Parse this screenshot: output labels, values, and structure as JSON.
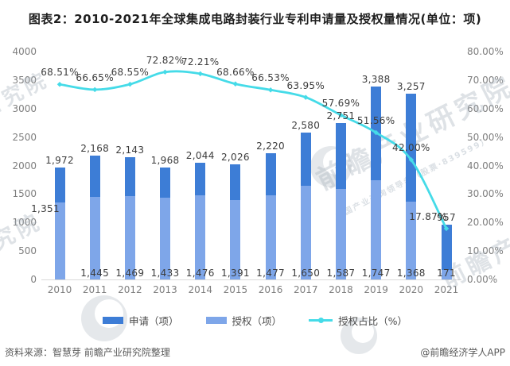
{
  "title": "图表2：2010-2021年全球集成电路封装行业专利申请量及授权量情况(单位：项)",
  "footer": {
    "source_note": "资料来源：智慧芽 前瞻产业研究院整理",
    "credit": "@前瞻经济学人APP"
  },
  "watermark": {
    "main": "前瞻产业研究院",
    "sub": "中国产业咨询领导者（股票·839599）",
    "side": "前瞻产业研究院",
    "left_fragment": "研究院"
  },
  "colors": {
    "application_bar": "#3d7dd6",
    "grant_bar": "#7ea6e9",
    "ratio_line": "#45dbe8",
    "axis_text": "#7e7e7e",
    "label_text": "#3c3c3c",
    "baseline": "#d9d9d9"
  },
  "legend": [
    {
      "label": "申请（项）",
      "type": "bar",
      "color_key": "application_bar"
    },
    {
      "label": "授权（项）",
      "type": "bar",
      "color_key": "grant_bar"
    },
    {
      "label": "授权占比（%）",
      "type": "line",
      "color_key": "ratio_line"
    }
  ],
  "left_axis": {
    "min": 0,
    "max": 4000,
    "ticks": [
      "0",
      "500",
      "1000",
      "1500",
      "2000",
      "2500",
      "3000",
      "3500",
      "4000"
    ]
  },
  "right_axis": {
    "min": 0,
    "max": 80,
    "ticks": [
      "0.00%",
      "10.00%",
      "20.00%",
      "30.00%",
      "40.00%",
      "50.00%",
      "60.00%",
      "70.00%",
      "80.00%"
    ]
  },
  "chart_data": {
    "type": "combo-bar-line-dual-axis",
    "categories": [
      "2010",
      "2011",
      "2012",
      "2013",
      "2014",
      "2015",
      "2016",
      "2017",
      "2018",
      "2019",
      "2020",
      "2021"
    ],
    "series": [
      {
        "name": "申请（项）",
        "type": "bar",
        "axis": "left",
        "values": [
          1972,
          2168,
          2143,
          1968,
          2044,
          2026,
          2220,
          2580,
          2751,
          3388,
          3257,
          957
        ],
        "labels": [
          "1,972",
          "2,168",
          "2,143",
          "1,968",
          "2,044",
          "2,026",
          "2,220",
          "2,580",
          "2,751",
          "3,388",
          "3,257",
          "957"
        ]
      },
      {
        "name": "授权（项）",
        "type": "bar",
        "axis": "left",
        "values": [
          1351,
          1445,
          1469,
          1433,
          1476,
          1391,
          1477,
          1650,
          1587,
          1747,
          1368,
          171
        ],
        "labels": [
          "1,351",
          "1,445",
          "1,469",
          "1,433",
          "1,476",
          "1,391",
          "1,477",
          "1,650",
          "1,587",
          "1,747",
          "1,368",
          "171"
        ]
      },
      {
        "name": "授权占比（%）",
        "type": "line",
        "axis": "right",
        "values": [
          68.51,
          66.65,
          68.55,
          72.82,
          72.21,
          68.66,
          66.53,
          63.95,
          57.69,
          51.56,
          42.0,
          17.87
        ],
        "labels": [
          "68.51%",
          "66.65%",
          "68.55%",
          "72.82%",
          "72.21%",
          "68.66%",
          "66.53%",
          "63.95%",
          "57.69%",
          "51.56%",
          "42.00%",
          "17.87%"
        ]
      }
    ],
    "left_ylim": [
      0,
      4000
    ],
    "right_ylim": [
      0,
      80
    ],
    "grid": false,
    "legend_position": "bottom"
  }
}
